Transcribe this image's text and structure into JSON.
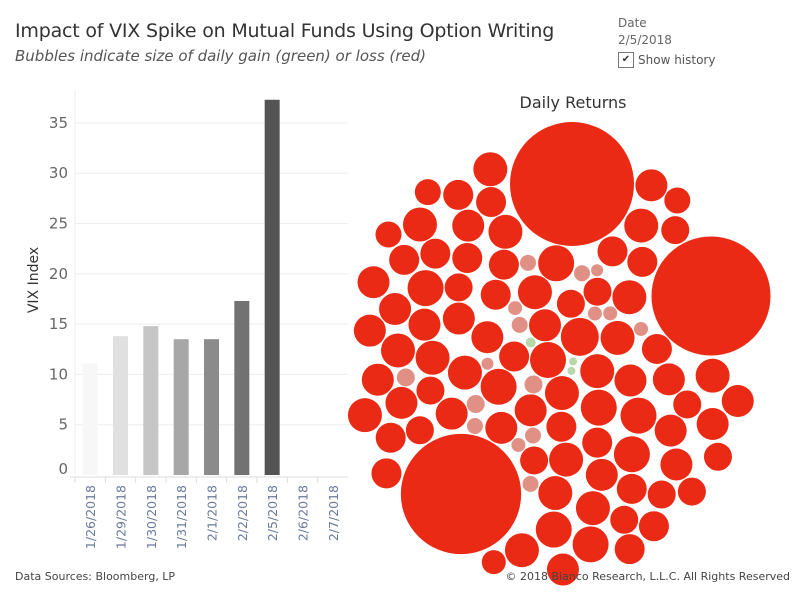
{
  "title": "Impact of VIX Spike on Mutual Funds Using Option Writing",
  "subtitle": "Bubbles indicate size of daily gain (green) or loss (red)",
  "filter": {
    "label": "Date",
    "value": "2/5/2018",
    "show_history_label": "Show history",
    "show_history_checked": true
  },
  "footer": {
    "left": "Data Sources: Bloomberg, LP",
    "right": "© 2018 Bianco Research, L.L.C. All Rights Reserved"
  },
  "chart_data": [
    {
      "type": "bar",
      "ylabel": "VIX Index",
      "xlabel": "",
      "ylim": [
        0,
        37.5
      ],
      "yticks": [
        0,
        5,
        10,
        15,
        20,
        25,
        30,
        35
      ],
      "grid": true,
      "categories": [
        "1/26/2018",
        "1/29/2018",
        "1/30/2018",
        "1/31/2018",
        "2/1/2018",
        "2/2/2018",
        "2/5/2018",
        "2/6/2018",
        "2/7/2018"
      ],
      "values": [
        11.1,
        13.8,
        14.8,
        13.5,
        13.5,
        17.3,
        37.3,
        null,
        null
      ],
      "colors": [
        "#f7f7f7",
        "#e0e0e0",
        "#c6c6c6",
        "#a7a7a7",
        "#8b8b8b",
        "#727272",
        "#545454",
        null,
        null
      ]
    },
    {
      "type": "bubble",
      "title": "Daily Returns",
      "colors": {
        "loss": "#ea2a14",
        "small_loss": "#e19085",
        "gain": "#b8d8aa"
      },
      "bubbles": {
        "large_losses": [
          100,
          96,
          97
        ],
        "losses": [
          17,
          16,
          15,
          18,
          14,
          16,
          15,
          17,
          13,
          16,
          14,
          15,
          17,
          16,
          15,
          14,
          13,
          16,
          15,
          17,
          14,
          16,
          15,
          13,
          14,
          16,
          17,
          15,
          14,
          13,
          16,
          15,
          14,
          17,
          16,
          15,
          13,
          14,
          16,
          15,
          14,
          17,
          15,
          16,
          13,
          14,
          15,
          16,
          17,
          14,
          15,
          13,
          16,
          15,
          14,
          15,
          16,
          13,
          14,
          15,
          17,
          16,
          14,
          13,
          15,
          16,
          14,
          15,
          13,
          16,
          15,
          14,
          13,
          15,
          16,
          14,
          15,
          13,
          14,
          15,
          12,
          12,
          11,
          12
        ],
        "small_losses": [
          9,
          8,
          7,
          8,
          9,
          7,
          8,
          7,
          6,
          8,
          9,
          7,
          8,
          6,
          7,
          8
        ],
        "gains": [
          5,
          4,
          4
        ]
      }
    }
  ]
}
